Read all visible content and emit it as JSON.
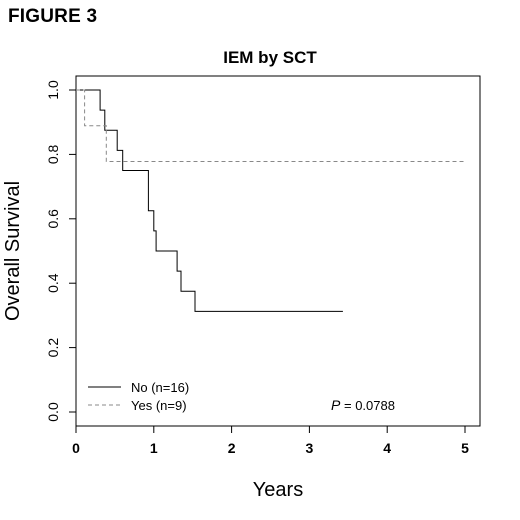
{
  "figure_label": "FIGURE 3",
  "chart_data": {
    "type": "line",
    "subtype": "kaplan-meier step plot",
    "title": "IEM by SCT",
    "xlabel": "Years",
    "ylabel": "Overall Survival",
    "xlim": [
      0,
      5
    ],
    "ylim": [
      0,
      1
    ],
    "xticks": [
      "0",
      "1",
      "2",
      "3",
      "4",
      "5"
    ],
    "xtick_values": [
      0,
      1,
      2,
      3,
      4,
      5
    ],
    "yticks": [
      "0.0",
      "0.2",
      "0.4",
      "0.6",
      "0.8",
      "1.0"
    ],
    "ytick_values": [
      0,
      0.2,
      0.4,
      0.6,
      0.8,
      1.0
    ],
    "grid": false,
    "legend_position": "bottom-left",
    "series": [
      {
        "name": "No (n=16)",
        "style": "solid",
        "color": "#000000",
        "x": [
          0,
          0.31,
          0.31,
          0.37,
          0.37,
          0.53,
          0.53,
          0.6,
          0.6,
          0.93,
          0.93,
          1.0,
          1.0,
          1.03,
          1.03,
          1.3,
          1.3,
          1.35,
          1.35,
          1.53,
          1.53,
          3.43
        ],
        "y": [
          1.0,
          1.0,
          0.9375,
          0.9375,
          0.875,
          0.875,
          0.8125,
          0.8125,
          0.75,
          0.75,
          0.625,
          0.625,
          0.5625,
          0.5625,
          0.5,
          0.5,
          0.4375,
          0.4375,
          0.375,
          0.375,
          0.3125,
          0.3125
        ]
      },
      {
        "name": "Yes (n=9)",
        "style": "dashed",
        "color": "#888888",
        "x": [
          0,
          0.11,
          0.11,
          0.39,
          0.39,
          5.0
        ],
        "y": [
          1.0,
          1.0,
          0.889,
          0.889,
          0.778,
          0.778
        ]
      }
    ],
    "annotation": {
      "p_label": "P",
      "p_value": "= 0.0788"
    }
  }
}
